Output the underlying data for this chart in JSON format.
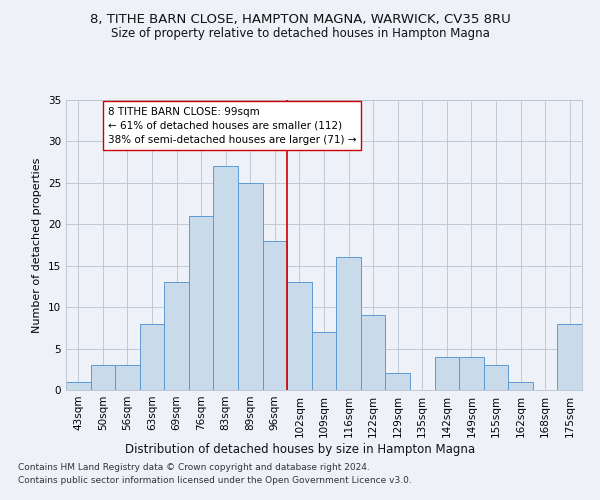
{
  "title": "8, TITHE BARN CLOSE, HAMPTON MAGNA, WARWICK, CV35 8RU",
  "subtitle": "Size of property relative to detached houses in Hampton Magna",
  "xlabel": "Distribution of detached houses by size in Hampton Magna",
  "ylabel": "Number of detached properties",
  "categories": [
    "43sqm",
    "50sqm",
    "56sqm",
    "63sqm",
    "69sqm",
    "76sqm",
    "83sqm",
    "89sqm",
    "96sqm",
    "102sqm",
    "109sqm",
    "116sqm",
    "122sqm",
    "129sqm",
    "135sqm",
    "142sqm",
    "149sqm",
    "155sqm",
    "162sqm",
    "168sqm",
    "175sqm"
  ],
  "values": [
    1,
    3,
    3,
    8,
    13,
    21,
    27,
    25,
    18,
    13,
    7,
    16,
    9,
    2,
    0,
    4,
    4,
    3,
    1,
    0,
    8
  ],
  "bar_color": "#c9daea",
  "bar_edge_color": "#5b9bd5",
  "vline_x": 8.5,
  "vline_color": "#cc0000",
  "annotation_line1": "8 TITHE BARN CLOSE: 99sqm",
  "annotation_line2": "← 61% of detached houses are smaller (112)",
  "annotation_line3": "38% of semi-detached houses are larger (71) →",
  "annotation_box_color": "#ffffff",
  "annotation_box_edge": "#cc0000",
  "ylim": [
    0,
    35
  ],
  "yticks": [
    0,
    5,
    10,
    15,
    20,
    25,
    30,
    35
  ],
  "footnote1": "Contains HM Land Registry data © Crown copyright and database right 2024.",
  "footnote2": "Contains public sector information licensed under the Open Government Licence v3.0.",
  "title_fontsize": 9.5,
  "subtitle_fontsize": 8.5,
  "xlabel_fontsize": 8.5,
  "ylabel_fontsize": 8,
  "tick_fontsize": 7.5,
  "annotation_fontsize": 7.5,
  "footnote_fontsize": 6.5,
  "background_color": "#eef2f8"
}
